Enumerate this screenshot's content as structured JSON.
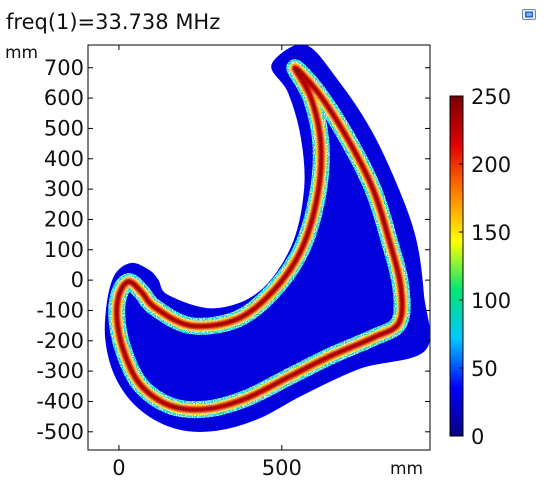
{
  "title": "freq(1)=33.738 MHz",
  "icons": {
    "corner": "image-export-icon"
  },
  "chart_data": {
    "type": "heatmap",
    "title": "freq(1)=33.738 MHz",
    "xlabel": "mm",
    "ylabel": "mm",
    "xlim": [
      -95,
      955
    ],
    "ylim": [
      -560,
      775
    ],
    "x_ticks": [
      0,
      500
    ],
    "y_ticks": [
      700,
      600,
      500,
      400,
      300,
      200,
      100,
      0,
      -100,
      -200,
      -300,
      -400,
      -500
    ],
    "grid": false,
    "colorbar": {
      "min": 0,
      "max": 250,
      "ticks": [
        250,
        200,
        150,
        100,
        50,
        0
      ],
      "colors": [
        "#080080",
        "#0000ff",
        "#00c8ff",
        "#00e676",
        "#ffff00",
        "#ff8000",
        "#e00000",
        "#7a0000"
      ]
    },
    "domain": {
      "outer_boundary": [
        [
          570,
          775
        ],
        [
          670,
          660
        ],
        [
          770,
          500
        ],
        [
          850,
          320
        ],
        [
          910,
          140
        ],
        [
          935,
          -50
        ],
        [
          940,
          -230
        ],
        [
          740,
          -290
        ],
        [
          560,
          -380
        ],
        [
          430,
          -455
        ],
        [
          300,
          -495
        ],
        [
          180,
          -490
        ],
        [
          70,
          -430
        ],
        [
          -5,
          -330
        ],
        [
          -40,
          -200
        ],
        [
          -35,
          -70
        ],
        [
          -10,
          20
        ],
        [
          40,
          55
        ],
        [
          95,
          30
        ],
        [
          120,
          0
        ],
        [
          150,
          -50
        ],
        [
          290,
          -95
        ],
        [
          430,
          -40
        ],
        [
          530,
          110
        ],
        [
          570,
          300
        ],
        [
          560,
          470
        ],
        [
          520,
          620
        ],
        [
          470,
          710
        ]
      ],
      "hot_ring": [
        [
          540,
          700
        ],
        [
          610,
          620
        ],
        [
          700,
          470
        ],
        [
          780,
          300
        ],
        [
          830,
          130
        ],
        [
          865,
          -20
        ],
        [
          860,
          -140
        ],
        [
          780,
          -190
        ],
        [
          650,
          -250
        ],
        [
          520,
          -320
        ],
        [
          390,
          -390
        ],
        [
          270,
          -425
        ],
        [
          160,
          -415
        ],
        [
          70,
          -350
        ],
        [
          20,
          -250
        ],
        [
          -5,
          -140
        ],
        [
          0,
          -50
        ],
        [
          30,
          -5
        ],
        [
          70,
          -40
        ],
        [
          110,
          -90
        ],
        [
          220,
          -150
        ],
        [
          360,
          -130
        ],
        [
          470,
          -40
        ],
        [
          560,
          100
        ],
        [
          610,
          280
        ],
        [
          620,
          450
        ],
        [
          590,
          600
        ]
      ],
      "background_level": 10,
      "band_level": 200
    }
  }
}
